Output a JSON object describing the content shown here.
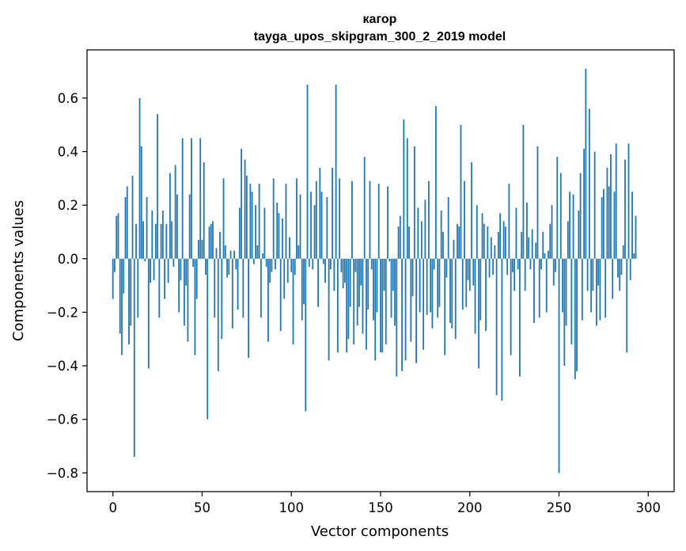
{
  "chart_data": {
    "type": "bar",
    "title": "кагор",
    "subtitle": "tayga_upos_skipgram_300_2_2019 model",
    "xlabel": "Vector components",
    "ylabel": "Components values",
    "xlim": [
      -14.5,
      314.5
    ],
    "ylim": [
      -0.87,
      0.78
    ],
    "x_ticks": [
      0,
      50,
      100,
      150,
      200,
      250,
      300
    ],
    "x_tick_labels": [
      "0",
      "50",
      "100",
      "150",
      "200",
      "250",
      "300"
    ],
    "y_ticks": [
      -0.8,
      -0.6,
      -0.4,
      -0.2,
      0.0,
      0.2,
      0.4,
      0.6
    ],
    "y_tick_labels": [
      "−0.8",
      "−0.6",
      "−0.4",
      "−0.2",
      "0.0",
      "0.2",
      "0.4",
      "0.6"
    ],
    "grid": false,
    "legend": "none",
    "bar_color": "#1f77b4",
    "values": [
      -0.15,
      -0.05,
      0.16,
      0.17,
      -0.28,
      -0.36,
      -0.13,
      0.23,
      0.27,
      -0.32,
      -0.25,
      0.31,
      -0.74,
      0.13,
      -0.22,
      0.6,
      0.42,
      0.14,
      -0.01,
      0.23,
      -0.41,
      -0.09,
      0.18,
      -0.08,
      0.13,
      0.54,
      -0.22,
      0.13,
      0.18,
      -0.15,
      0.13,
      -0.09,
      0.32,
      0.14,
      -0.03,
      0.35,
      0.24,
      -0.2,
      -0.08,
      0.45,
      -0.25,
      -0.1,
      -0.31,
      0.24,
      0.45,
      -0.03,
      -0.36,
      -0.15,
      0.07,
      0.45,
      0.07,
      0.36,
      -0.06,
      -0.6,
      0.12,
      0.13,
      0.14,
      -0.22,
      0.04,
      -0.42,
      0.1,
      -0.3,
      0.3,
      0.05,
      -0.07,
      -0.06,
      0.03,
      -0.26,
      0.03,
      -0.04,
      -0.19,
      0.19,
      0.41,
      -0.22,
      0.37,
      0.31,
      -0.37,
      0.28,
      0.25,
      -0.02,
      0.2,
      0.05,
      0.28,
      -0.22,
      0.02,
      0.19,
      -0.03,
      -0.31,
      -0.09,
      -0.05,
      0.3,
      -0.04,
      0.21,
      0.17,
      -0.27,
      0.15,
      -0.15,
      0.28,
      -0.09,
      0.08,
      -0.05,
      -0.32,
      -0.06,
      0.3,
      0.05,
      0.24,
      -0.23,
      -0.17,
      -0.57,
      0.65,
      -0.03,
      0.25,
      -0.04,
      0.2,
      0.29,
      -0.18,
      0.34,
      0.25,
      -0.02,
      -0.09,
      0.23,
      -0.38,
      -0.04,
      0.34,
      -0.12,
      0.65,
      -0.35,
      0.3,
      -0.05,
      -0.11,
      -0.09,
      -0.35,
      -0.3,
      -0.18,
      0.29,
      -0.32,
      -0.05,
      -0.25,
      -0.18,
      -0.1,
      -0.28,
      0.38,
      -0.34,
      -0.19,
      0.29,
      -0.04,
      -0.23,
      -0.38,
      -0.2,
      0.28,
      -0.35,
      -0.35,
      -0.12,
      -0.32,
      0.27,
      -0.01,
      -0.22,
      -0.12,
      -0.25,
      -0.44,
      0.12,
      0.16,
      -0.42,
      0.52,
      -0.38,
      0.45,
      0.12,
      -0.31,
      -0.14,
      0.42,
      -0.39,
      0.19,
      -0.2,
      0.14,
      -0.34,
      0.22,
      -0.21,
      0.29,
      -0.2,
      -0.26,
      -0.04,
      0.57,
      -0.22,
      -0.18,
      0.18,
      0.1,
      -0.36,
      -0.07,
      0.23,
      -0.24,
      -0.26,
      0.07,
      -0.3,
      0.13,
      0.12,
      0.5,
      -0.19,
      0.29,
      -0.18,
      -0.08,
      -0.12,
      0.36,
      -0.1,
      -0.28,
      0.2,
      -0.41,
      -0.23,
      0.17,
      0.13,
      -0.27,
      0.12,
      -0.07,
      0.08,
      -0.06,
      0.05,
      -0.51,
      0.1,
      0.17,
      -0.53,
      0.14,
      0.12,
      -0.06,
      0.28,
      -0.36,
      -0.05,
      -0.12,
      0.19,
      -0.04,
      -0.44,
      0.1,
      0.5,
      -0.12,
      0.21,
      0.08,
      -0.04,
      0.11,
      -0.24,
      0.06,
      0.42,
      -0.22,
      -0.04,
      0.1,
      0.02,
      -0.2,
      0.03,
      0.13,
      0.2,
      -0.1,
      -0.05,
      0.38,
      -0.8,
      0.32,
      -0.2,
      -0.4,
      -0.25,
      0.14,
      0.25,
      -0.32,
      0.24,
      -0.45,
      -0.42,
      0.18,
      0.32,
      -0.23,
      0.41,
      0.71,
      -0.12,
      0.56,
      -0.2,
      -0.12,
      0.4,
      -0.25,
      -0.1,
      -0.23,
      0.23,
      0.26,
      -0.22,
      0.34,
      0.27,
      0.39,
      -0.15,
      0.25,
      0.43,
      -0.07,
      -0.12,
      -0.06,
      0.05,
      0.37,
      -0.35,
      0.43,
      -0.08,
      0.25,
      0.02,
      0.16
    ]
  }
}
